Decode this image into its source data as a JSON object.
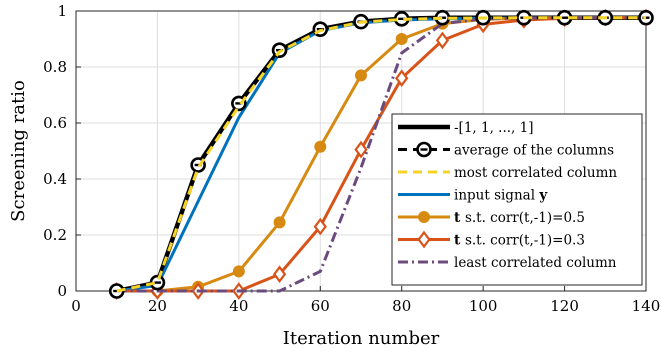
{
  "chart_data": {
    "type": "line",
    "xlabel": "Iteration number",
    "ylabel": "Screening ratio",
    "xlim": [
      0,
      140
    ],
    "ylim": [
      0,
      1
    ],
    "xticks": [
      "0",
      "20",
      "40",
      "60",
      "80",
      "100",
      "120",
      "140"
    ],
    "yticks": [
      "0",
      "0.2",
      "0.4",
      "0.6",
      "0.8",
      "1"
    ],
    "grid": true,
    "legend_position": "bottom-right",
    "x": [
      10,
      20,
      30,
      40,
      50,
      60,
      70,
      80,
      90,
      100,
      110,
      120,
      130,
      140
    ],
    "series": [
      {
        "name": "-[1, 1, ..., 1]",
        "label_prefix": "",
        "color": "#000000",
        "style": "solid",
        "marker": "none",
        "values": [
          0,
          0.03,
          0.45,
          0.67,
          0.86,
          0.935,
          0.962,
          0.972,
          0.976,
          0.976,
          0.976,
          0.976,
          0.976,
          0.976
        ]
      },
      {
        "name": "average of the columns",
        "label_prefix": "",
        "color": "#000000",
        "style": "dashed",
        "marker": "circle",
        "values": [
          0,
          0.03,
          0.45,
          0.67,
          0.86,
          0.935,
          0.962,
          0.972,
          0.976,
          0.976,
          0.976,
          0.976,
          0.976,
          0.976
        ]
      },
      {
        "name": "most correlated column",
        "label_prefix": "",
        "color": "#f5d327",
        "style": "dashed",
        "marker": "none",
        "values": [
          0,
          0.03,
          0.44,
          0.66,
          0.855,
          0.93,
          0.96,
          0.97,
          0.974,
          0.975,
          0.976,
          0.976,
          0.976,
          0.976
        ]
      },
      {
        "name": "input signal y",
        "label_prefix": "",
        "color": "#0072bd",
        "style": "solid",
        "marker": "none",
        "values": [
          0,
          0.02,
          0.32,
          0.62,
          0.85,
          0.93,
          0.958,
          0.968,
          0.972,
          0.974,
          0.975,
          0.976,
          0.976,
          0.976
        ]
      },
      {
        "name": "s.t. corr(t,-1)=0.5",
        "label_prefix": "t",
        "color": "#d78a11",
        "style": "solid",
        "marker": "circle-filled",
        "values": [
          0,
          0,
          0.015,
          0.07,
          0.245,
          0.515,
          0.77,
          0.9,
          0.955,
          0.97,
          0.975,
          0.976,
          0.976,
          0.976
        ]
      },
      {
        "name": "s.t. corr(t,-1)=0.3",
        "label_prefix": "t",
        "color": "#d95319",
        "style": "solid",
        "marker": "diamond",
        "values": [
          0,
          0,
          0,
          0,
          0.06,
          0.23,
          0.505,
          0.76,
          0.895,
          0.952,
          0.968,
          0.974,
          0.976,
          0.976
        ]
      },
      {
        "name": "least correlated column",
        "label_prefix": "",
        "color": "#6b4a7d",
        "style": "dashdot",
        "marker": "none",
        "values": [
          0,
          0,
          0,
          0,
          0,
          0.07,
          0.44,
          0.85,
          0.955,
          0.972,
          0.975,
          0.976,
          0.976,
          0.976
        ]
      }
    ]
  }
}
